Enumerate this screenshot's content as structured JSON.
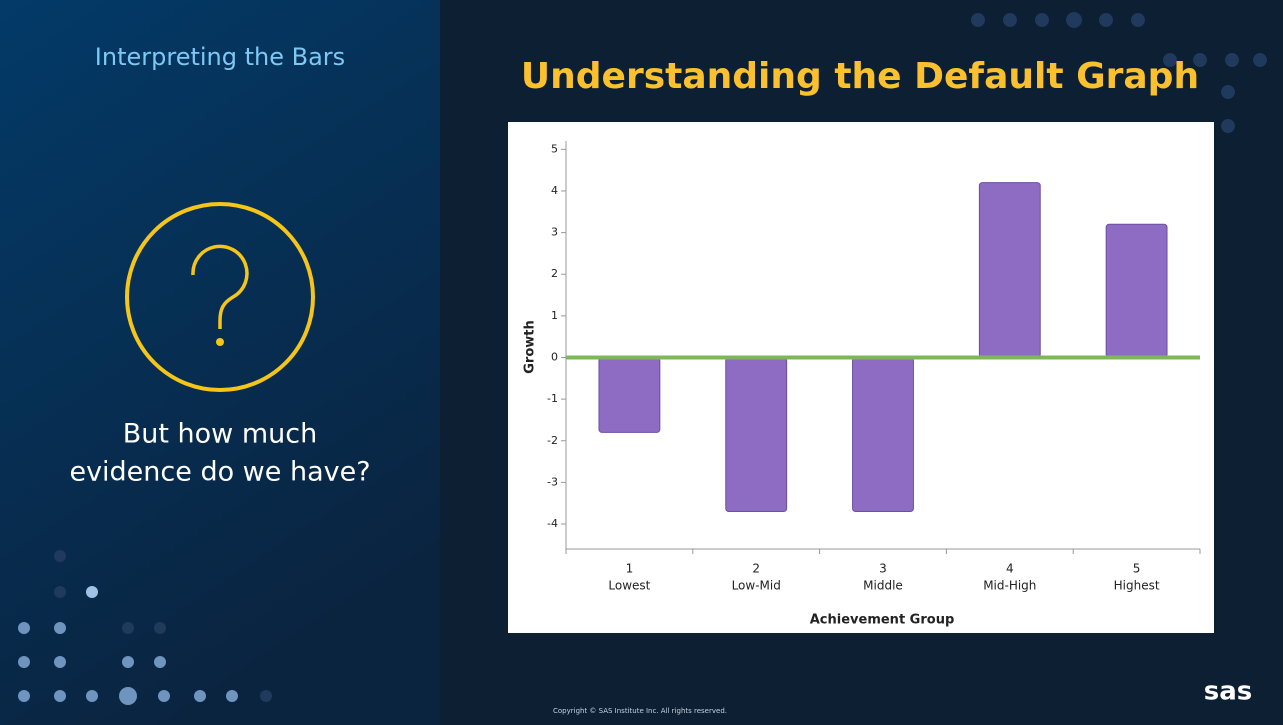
{
  "slide": {
    "section_title": "Interpreting the Bars",
    "question_lines": [
      "But how much",
      "evidence do we have?"
    ],
    "copyright": "Copyright © SAS Institute Inc. All rights reserved.",
    "logo": "sas"
  },
  "chart_data": {
    "type": "bar",
    "title": "Understanding the Default Graph",
    "categories": [
      "1",
      "2",
      "3",
      "4",
      "5"
    ],
    "category_labels": [
      "Lowest",
      "Low-Mid",
      "Middle",
      "Mid-High",
      "Highest"
    ],
    "values": [
      -1.8,
      -3.7,
      -3.7,
      4.2,
      3.2
    ],
    "color": "#8e6cc4",
    "x_label": "Achievement Group",
    "y_label": "Growth",
    "ylim": [
      -4.6,
      5.2
    ],
    "yticks": [
      -4,
      -3,
      -2,
      -1,
      0,
      1,
      2,
      3,
      4,
      5
    ],
    "reference_line": 0,
    "reference_color": "#7cb85a",
    "grid": false
  }
}
